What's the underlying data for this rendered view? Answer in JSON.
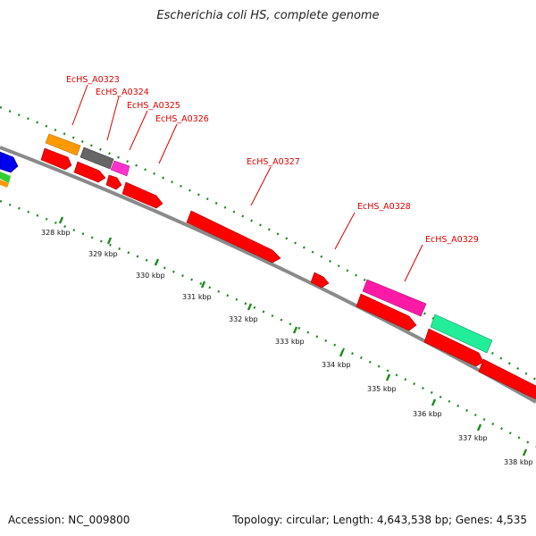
{
  "header": {
    "title": "Escherichia coli HS, complete genome"
  },
  "footer": {
    "accession": "Accession: NC_009800",
    "summary": "Topology: circular; Length: 4,643,538 bp; Genes: 4,535"
  },
  "colors": {
    "backbone": "#8a8a8a",
    "tick": "#1f8a1f",
    "label": "#dd0000",
    "cds_red": "#ff0000",
    "orange": "#ff9900",
    "gray": "#666666",
    "magenta": "#ff33cc",
    "teal": "#22ee99",
    "blue": "#0000ee",
    "green": "#33cc33"
  },
  "gene_labels": [
    {
      "text": "EcHS_A0323"
    },
    {
      "text": "EcHS_A0324"
    },
    {
      "text": "EcHS_A0325"
    },
    {
      "text": "EcHS_A0326"
    },
    {
      "text": "EcHS_A0327"
    },
    {
      "text": "EcHS_A0328"
    },
    {
      "text": "EcHS_A0329"
    }
  ],
  "kbp_ticks": [
    "328 kbp",
    "329 kbp",
    "330 kbp",
    "331 kbp",
    "332 kbp",
    "333 kbp",
    "334 kbp",
    "335 kbp",
    "336 kbp",
    "337 kbp",
    "338 kbp"
  ]
}
